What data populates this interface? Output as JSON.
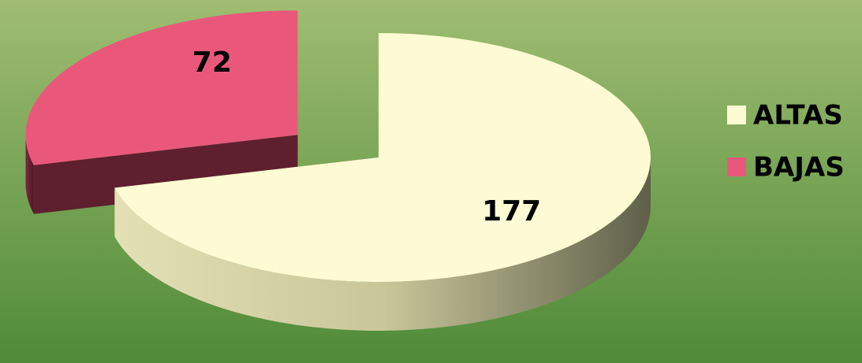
{
  "chart_data": {
    "type": "pie",
    "categories": [
      "ALTAS",
      "BAJAS"
    ],
    "values": [
      177,
      72
    ],
    "colors": [
      "#fdfbd3",
      "#e9587b"
    ],
    "legend": "right"
  }
}
